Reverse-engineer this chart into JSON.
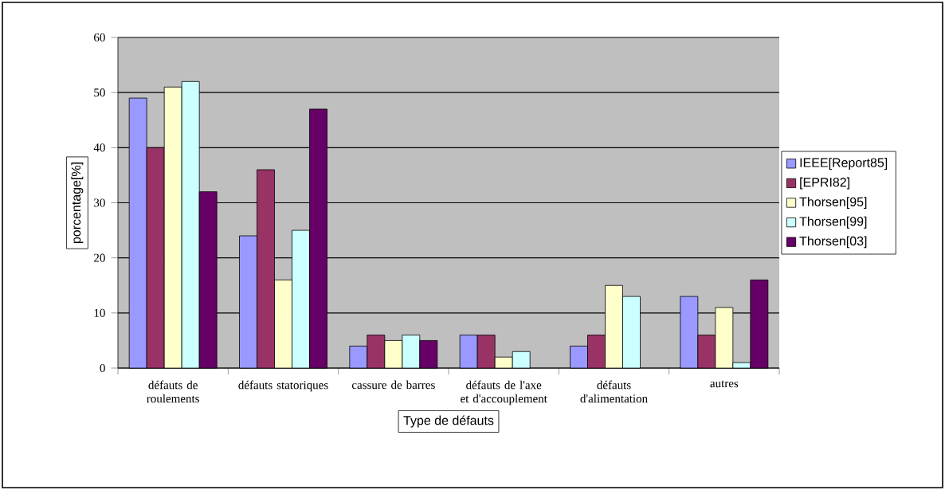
{
  "chart_data": {
    "type": "bar",
    "xlabel": "Type de défauts",
    "ylabel": "porcentage[%]",
    "categories": [
      "défauts de roulements",
      "défauts statoriques",
      "cassure de barres",
      "défauts de l'axe et d'accouplement",
      "défauts d'alimentation",
      "autres"
    ],
    "series": [
      {
        "name": "IEEE[Report85]",
        "color": "#9999ff",
        "values": [
          49,
          24,
          4,
          6,
          4,
          13
        ]
      },
      {
        "name": "[EPRI82]",
        "color": "#993366",
        "values": [
          40,
          36,
          6,
          6,
          6,
          6
        ]
      },
      {
        "name": "Thorsen[95]",
        "color": "#ffffcc",
        "values": [
          51,
          16,
          5,
          2,
          15,
          11
        ]
      },
      {
        "name": "Thorsen[99]",
        "color": "#ccffff",
        "values": [
          52,
          25,
          6,
          3,
          13,
          1
        ]
      },
      {
        "name": "Thorsen[03]",
        "color": "#660066",
        "values": [
          32,
          47,
          5,
          null,
          null,
          16
        ]
      }
    ],
    "ylim": [
      0,
      60
    ],
    "yticks": [
      0,
      10,
      20,
      30,
      40,
      50,
      60
    ],
    "grid": "y",
    "legend": "right"
  }
}
